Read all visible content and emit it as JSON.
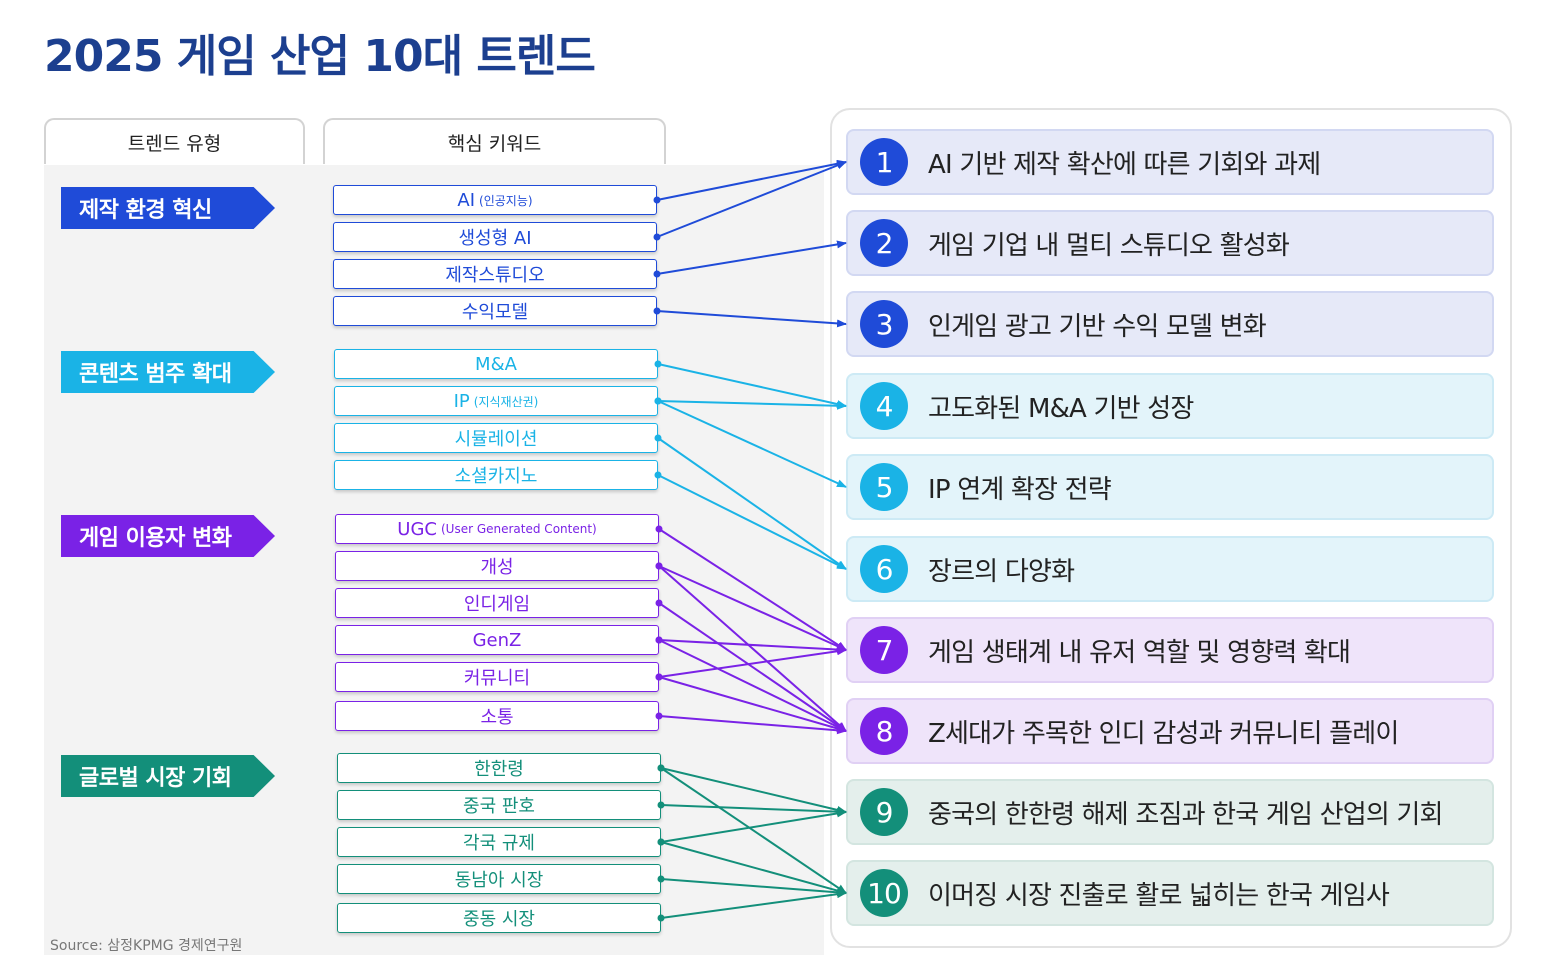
{
  "title": "2025 게임 산업 10대 트렌드",
  "headers": {
    "type": "트렌드 유형",
    "keyword": "핵심 키워드"
  },
  "categories": [
    {
      "label": "제작 환경 혁신",
      "color": "#1f4bd8"
    },
    {
      "label": "콘텐츠 범주 확대",
      "color": "#1ab3e6"
    },
    {
      "label": "게임 이용자 변화",
      "color": "#7a22e6"
    },
    {
      "label": "글로벌 시장 기회",
      "color": "#138f7a"
    }
  ],
  "keywords": [
    {
      "label": "AI",
      "sub": "(인공지능)",
      "color": "#1f4bd8"
    },
    {
      "label": "생성형 AI",
      "sub": "",
      "color": "#1f4bd8"
    },
    {
      "label": "제작스튜디오",
      "sub": "",
      "color": "#1f4bd8"
    },
    {
      "label": "수익모델",
      "sub": "",
      "color": "#1f4bd8"
    },
    {
      "label": "M&A",
      "sub": "",
      "color": "#1ab3e6"
    },
    {
      "label": "IP",
      "sub": "(지식재산권)",
      "color": "#1ab3e6"
    },
    {
      "label": "시뮬레이션",
      "sub": "",
      "color": "#1ab3e6"
    },
    {
      "label": "소셜카지노",
      "sub": "",
      "color": "#1ab3e6"
    },
    {
      "label": "UGC",
      "sub": "(User Generated Content)",
      "color": "#7a22e6"
    },
    {
      "label": "개성",
      "sub": "",
      "color": "#7a22e6"
    },
    {
      "label": "인디게임",
      "sub": "",
      "color": "#7a22e6"
    },
    {
      "label": "GenZ",
      "sub": "",
      "color": "#7a22e6"
    },
    {
      "label": "커뮤니티",
      "sub": "",
      "color": "#7a22e6"
    },
    {
      "label": "소통",
      "sub": "",
      "color": "#7a22e6"
    },
    {
      "label": "한한령",
      "sub": "",
      "color": "#138f7a"
    },
    {
      "label": "중국 판호",
      "sub": "",
      "color": "#138f7a"
    },
    {
      "label": "각국 규제",
      "sub": "",
      "color": "#138f7a"
    },
    {
      "label": "동남아 시장",
      "sub": "",
      "color": "#138f7a"
    },
    {
      "label": "중동 시장",
      "sub": "",
      "color": "#138f7a"
    }
  ],
  "trends": [
    {
      "num": "1",
      "text": "AI 기반 제작 확산에 따른 기회와 과제",
      "color": "#1f4bd8",
      "bg": "#e6e9f8"
    },
    {
      "num": "2",
      "text": "게임 기업 내 멀티 스튜디오 활성화",
      "color": "#1f4bd8",
      "bg": "#e6e9f8"
    },
    {
      "num": "3",
      "text": "인게임 광고 기반 수익 모델 변화",
      "color": "#1f4bd8",
      "bg": "#e6e9f8"
    },
    {
      "num": "4",
      "text": "고도화된 M&A 기반 성장",
      "color": "#1ab3e6",
      "bg": "#e3f4fa"
    },
    {
      "num": "5",
      "text": "IP 연계 확장 전략",
      "color": "#1ab3e6",
      "bg": "#e3f4fa"
    },
    {
      "num": "6",
      "text": "장르의 다양화",
      "color": "#1ab3e6",
      "bg": "#e3f4fa"
    },
    {
      "num": "7",
      "text": "게임 생태계 내 유저 역할 및 영향력 확대",
      "color": "#7a22e6",
      "bg": "#efe4fa"
    },
    {
      "num": "8",
      "text": "Z세대가 주목한 인디 감성과 커뮤니티 플레이",
      "color": "#7a22e6",
      "bg": "#efe4fa"
    },
    {
      "num": "9",
      "text": "중국의 한한령 해제 조짐과 한국 게임 산업의 기회",
      "color": "#138f7a",
      "bg": "#e4efec"
    },
    {
      "num": "10",
      "text": "이머징 시장 진출로 활로 넓히는 한국 게임사",
      "color": "#138f7a",
      "bg": "#e4efec"
    }
  ],
  "links": [
    [
      0,
      0
    ],
    [
      1,
      0
    ],
    [
      2,
      1
    ],
    [
      3,
      2
    ],
    [
      4,
      3
    ],
    [
      5,
      3
    ],
    [
      5,
      4
    ],
    [
      6,
      5
    ],
    [
      7,
      5
    ],
    [
      8,
      6
    ],
    [
      9,
      6
    ],
    [
      9,
      7
    ],
    [
      10,
      7
    ],
    [
      11,
      6
    ],
    [
      11,
      7
    ],
    [
      12,
      6
    ],
    [
      12,
      7
    ],
    [
      13,
      7
    ],
    [
      14,
      8
    ],
    [
      14,
      9
    ],
    [
      15,
      8
    ],
    [
      16,
      8
    ],
    [
      16,
      9
    ],
    [
      17,
      9
    ],
    [
      18,
      9
    ]
  ],
  "source": "Source: 삼정KPMG 경제연구원"
}
